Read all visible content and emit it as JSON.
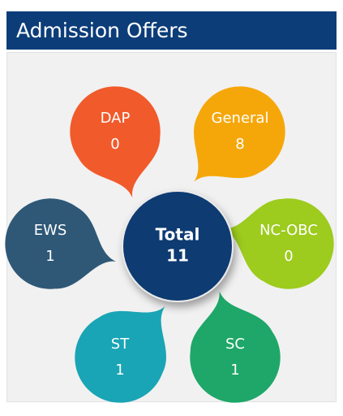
{
  "header": {
    "title": "Admission Offers"
  },
  "center": {
    "label": "Total",
    "value": "11"
  },
  "petals": [
    {
      "label": "DAP",
      "value": "0",
      "color": "#f15a2b"
    },
    {
      "label": "General",
      "value": "8",
      "color": "#f5a70a"
    },
    {
      "label": "NC-OBC",
      "value": "0",
      "color": "#9dcb1e"
    },
    {
      "label": "SC",
      "value": "1",
      "color": "#1ea768"
    },
    {
      "label": "ST",
      "value": "1",
      "color": "#19a5b5"
    },
    {
      "label": "EWS",
      "value": "1",
      "color": "#2f5877"
    }
  ]
}
